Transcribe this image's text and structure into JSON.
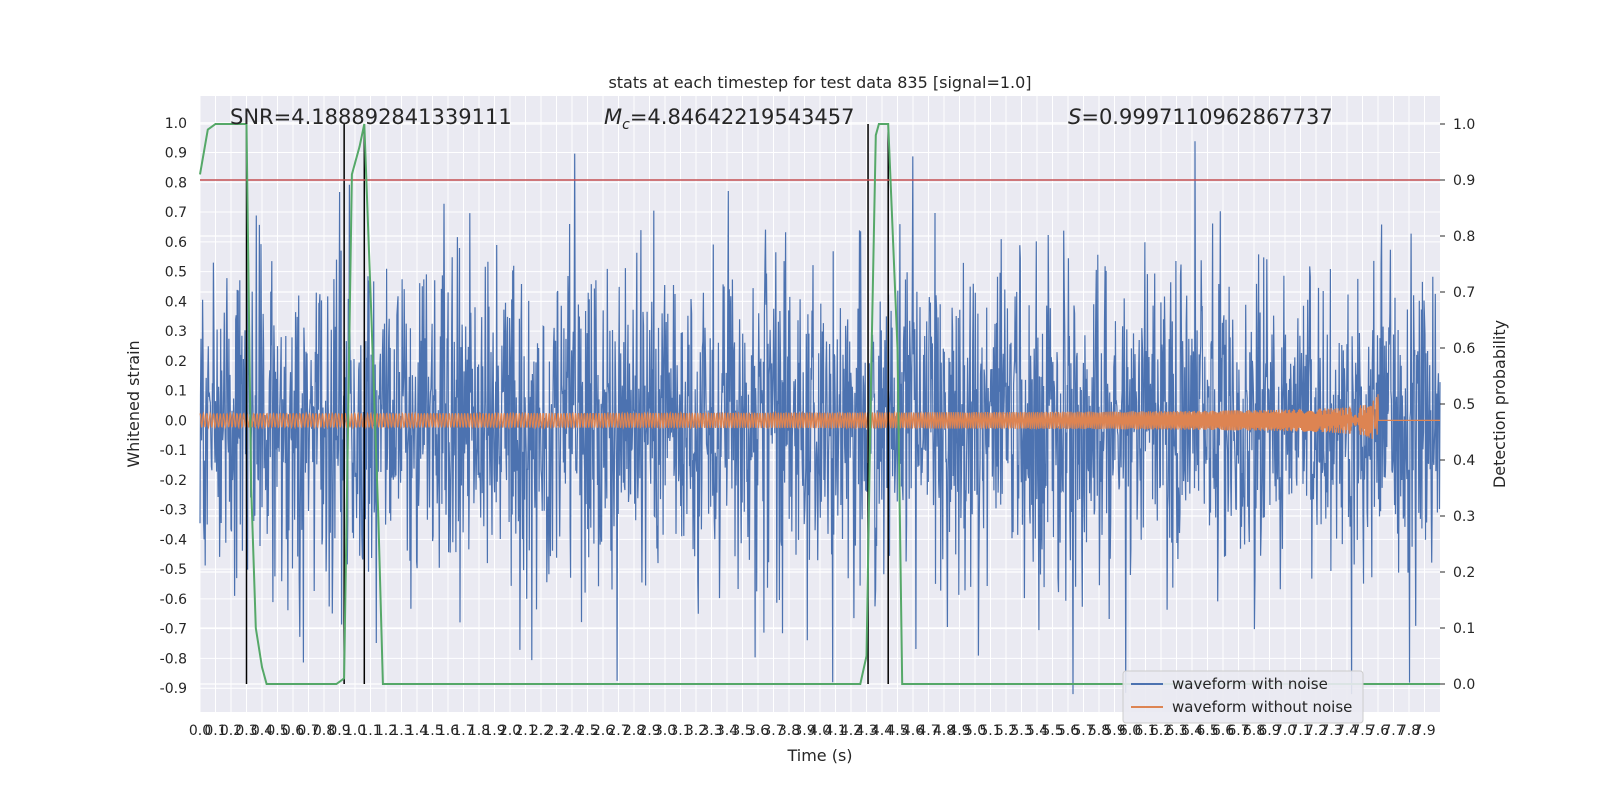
{
  "chart_data": {
    "type": "line",
    "title": "stats at each timestep for test data 835 [signal=1.0]",
    "xlabel": "Time (s)",
    "ylabel": "Whitened strain",
    "y2label": "Detection probability",
    "xlim": [
      0.0,
      8.0
    ],
    "ylim": [
      -0.98,
      1.09
    ],
    "y2lim": [
      -0.05,
      1.05
    ],
    "x_ticks": [
      "0.0",
      "0.1",
      "0.2",
      "0.3",
      "0.4",
      "0.5",
      "0.6",
      "0.7",
      "0.8",
      "0.9",
      "1.0",
      "1.1",
      "1.2",
      "1.3",
      "1.4",
      "1.5",
      "1.6",
      "1.7",
      "1.8",
      "1.9",
      "2.0",
      "2.1",
      "2.2",
      "2.3",
      "2.4",
      "2.5",
      "2.6",
      "2.7",
      "2.8",
      "2.9",
      "3.0",
      "3.1",
      "3.2",
      "3.3",
      "3.4",
      "3.5",
      "3.6",
      "3.7",
      "3.8",
      "3.9",
      "4.0",
      "4.1",
      "4.2",
      "4.3",
      "4.4",
      "4.5",
      "4.6",
      "4.7",
      "4.8",
      "4.9",
      "5.0",
      "5.1",
      "5.2",
      "5.3",
      "5.4",
      "5.5",
      "5.6",
      "5.7",
      "5.8",
      "5.9",
      "6.0",
      "6.1",
      "6.2",
      "6.3",
      "6.4",
      "6.5",
      "6.6",
      "6.7",
      "6.8",
      "6.9",
      "7.0",
      "7.1",
      "7.2",
      "7.3",
      "7.4",
      "7.5",
      "7.6",
      "7.7",
      "7.8",
      "7.9"
    ],
    "y_ticks": [
      "1.0",
      "0.9",
      "0.8",
      "0.7",
      "0.6",
      "0.5",
      "0.4",
      "0.3",
      "0.2",
      "0.1",
      "0.0",
      "-0.1",
      "-0.2",
      "-0.3",
      "-0.4",
      "-0.5",
      "-0.6",
      "-0.7",
      "-0.8",
      "-0.9"
    ],
    "y_tick_values": [
      1.0,
      0.9,
      0.8,
      0.7,
      0.6,
      0.5,
      0.4,
      0.3,
      0.2,
      0.1,
      0.0,
      -0.1,
      -0.2,
      -0.3,
      -0.4,
      -0.5,
      -0.6,
      -0.7,
      -0.8,
      -0.9
    ],
    "y2_ticks": [
      "1.0",
      "0.9",
      "0.8",
      "0.7",
      "0.6",
      "0.5",
      "0.4",
      "0.3",
      "0.2",
      "0.1",
      "0.0"
    ],
    "y2_tick_values": [
      1.0,
      0.9,
      0.8,
      0.7,
      0.6,
      0.5,
      0.4,
      0.3,
      0.2,
      0.1,
      0.0
    ],
    "annotations": {
      "snr": "SNR=4.188892841339111",
      "mc_symbol": "M",
      "mc_sub": "c",
      "mc_value": "=4.84642219543457",
      "s_symbol": "S",
      "s_value": "=0.9997110962867737"
    },
    "threshold": {
      "axis": "right",
      "value": 0.9,
      "color": "#c44e52"
    },
    "event_markers": {
      "x": [
        0.3,
        0.93,
        1.06,
        4.31,
        4.44
      ],
      "y_range_right": [
        0.0,
        1.0
      ],
      "color": "#000000"
    },
    "series": [
      {
        "name": "waveform with noise",
        "color": "#4c72b0",
        "axis": "left",
        "description": "whitened strain noise, roughly between -0.9 and 1.0"
      },
      {
        "name": "waveform without noise",
        "color": "#dd8452",
        "axis": "left",
        "description": "chirp signal growing in amplitude, merger near 7.6 s",
        "merger_time": 7.6,
        "peak_amplitude": 0.1
      },
      {
        "name": "detection probability",
        "color": "#55a868",
        "axis": "right",
        "x": [
          0.0,
          0.05,
          0.1,
          0.15,
          0.2,
          0.25,
          0.28,
          0.3,
          0.33,
          0.36,
          0.4,
          0.43,
          0.5,
          0.6,
          0.7,
          0.8,
          0.88,
          0.93,
          0.98,
          1.03,
          1.06,
          1.1,
          1.15,
          1.18,
          1.2,
          1.3,
          1.5,
          2.0,
          2.5,
          3.0,
          3.5,
          4.0,
          4.2,
          4.26,
          4.3,
          4.33,
          4.36,
          4.38,
          4.44,
          4.5,
          4.53,
          4.6,
          5.0,
          6.0,
          7.0,
          7.5,
          8.0
        ],
        "y": [
          0.91,
          0.99,
          1.0,
          1.0,
          1.0,
          1.0,
          1.0,
          1.0,
          0.35,
          0.1,
          0.03,
          0.0,
          0.0,
          0.0,
          0.0,
          0.0,
          0.0,
          0.01,
          0.91,
          0.96,
          1.0,
          0.7,
          0.3,
          0.0,
          0.0,
          0.0,
          0.0,
          0.0,
          0.0,
          0.0,
          0.0,
          0.0,
          0.0,
          0.0,
          0.05,
          0.55,
          0.98,
          1.0,
          1.0,
          0.6,
          0.0,
          0.0,
          0.0,
          0.0,
          0.0,
          0.0,
          0.0
        ]
      }
    ],
    "legend": {
      "position": "lower-right",
      "entries": [
        "waveform with noise",
        "waveform without noise"
      ]
    }
  }
}
